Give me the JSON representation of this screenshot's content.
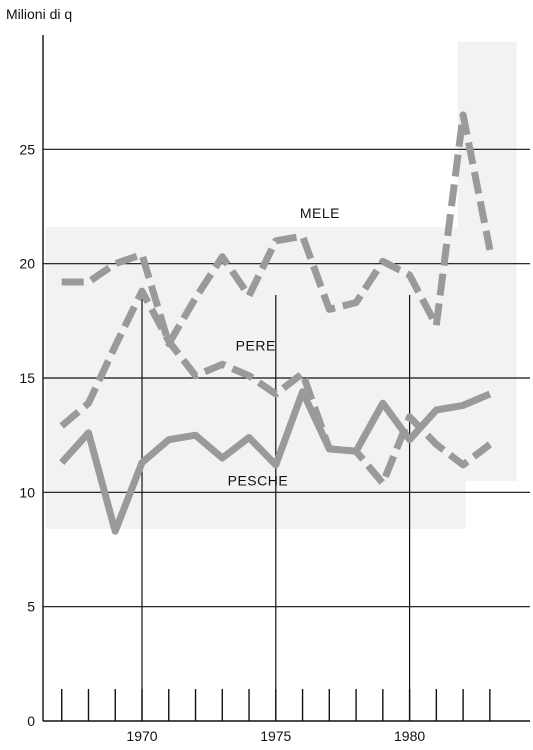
{
  "chart_data": {
    "type": "line",
    "title": "",
    "xlabel": "",
    "ylabel": "Milioni di q",
    "xlim": [
      1966.3,
      1984.5
    ],
    "ylim": [
      0,
      30
    ],
    "x_ticks": [
      1970,
      1975,
      1980
    ],
    "y_ticks": [
      0,
      5,
      10,
      15,
      20,
      25
    ],
    "grid": true,
    "legend": "inline labels",
    "x": [
      1967,
      1968,
      1969,
      1970,
      1971,
      1972,
      1973,
      1974,
      1975,
      1976,
      1977,
      1978,
      1979,
      1980,
      1981,
      1982,
      1983
    ],
    "series": [
      {
        "name": "MELE",
        "color": "#9a9a9a",
        "style": "dashed",
        "values": [
          19.2,
          19.2,
          20.0,
          20.4,
          16.5,
          18.5,
          20.3,
          18.6,
          21.0,
          21.2,
          18.0,
          18.3,
          20.1,
          19.5,
          17.3,
          26.5,
          20.6
        ]
      },
      {
        "name": "PERE",
        "color": "#9a9a9a",
        "style": "dashed",
        "values": [
          12.9,
          13.9,
          16.4,
          18.8,
          16.6,
          15.1,
          15.6,
          15.1,
          14.3,
          15.2,
          11.9,
          11.8,
          10.4,
          13.3,
          12.1,
          11.2,
          12.1
        ]
      },
      {
        "name": "PESCHE",
        "color": "#9a9a9a",
        "style": "solid",
        "values": [
          11.3,
          12.6,
          8.3,
          11.3,
          12.3,
          12.5,
          11.5,
          12.4,
          11.2,
          14.4,
          11.9,
          11.8,
          13.9,
          12.3,
          13.6,
          13.8,
          14.3
        ]
      }
    ]
  }
}
